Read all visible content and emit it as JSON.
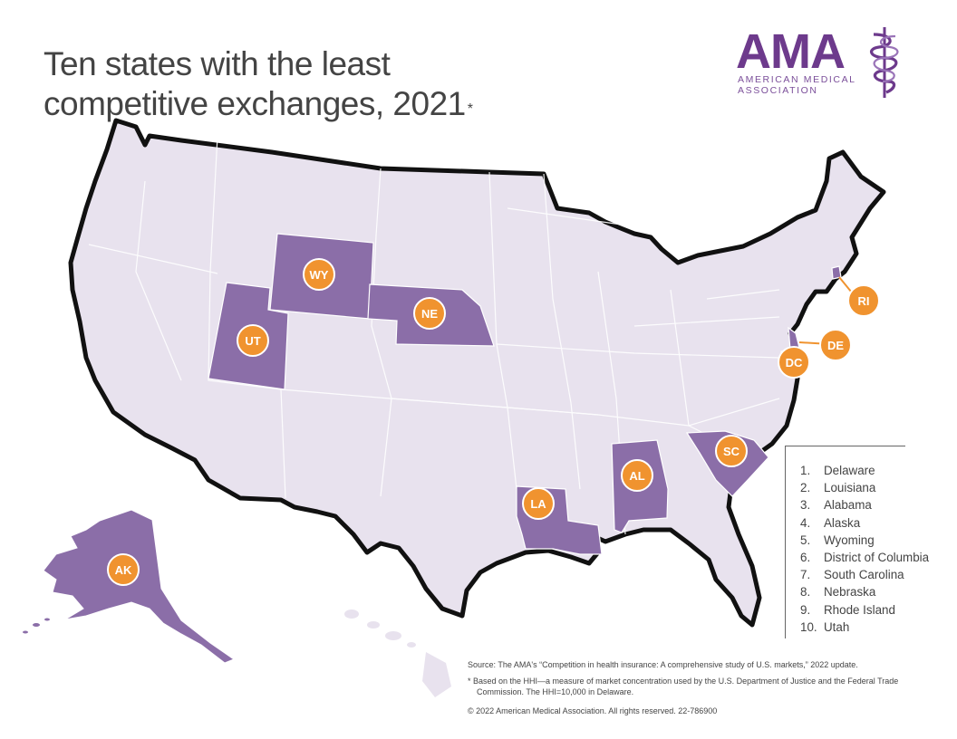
{
  "title": "Ten states with the least competitive exchanges, 2021",
  "title_marker": "*",
  "logo": {
    "brand": "AMA",
    "line1": "AMERICAN MEDICAL",
    "line2": "ASSOCIATION",
    "color": "#6d3a8c"
  },
  "colors": {
    "map_fill": "#e8e2ee",
    "highlight_fill": "#8b6ea8",
    "label_badge": "#f0932f",
    "border": "#111111"
  },
  "states": [
    {
      "abbr": "WY",
      "name": "Wyoming"
    },
    {
      "abbr": "NE",
      "name": "Nebraska"
    },
    {
      "abbr": "UT",
      "name": "Utah"
    },
    {
      "abbr": "LA",
      "name": "Louisiana"
    },
    {
      "abbr": "AL",
      "name": "Alabama"
    },
    {
      "abbr": "SC",
      "name": "South Carolina"
    },
    {
      "abbr": "AK",
      "name": "Alaska"
    },
    {
      "abbr": "RI",
      "name": "Rhode Island"
    },
    {
      "abbr": "DE",
      "name": "Delaware"
    },
    {
      "abbr": "DC",
      "name": "District of Columbia"
    }
  ],
  "legend": [
    {
      "n": "1.",
      "label": "Delaware"
    },
    {
      "n": "2.",
      "label": "Louisiana"
    },
    {
      "n": "3.",
      "label": "Alabama"
    },
    {
      "n": "4.",
      "label": "Alaska"
    },
    {
      "n": "5.",
      "label": "Wyoming"
    },
    {
      "n": "6.",
      "label": "District of Columbia"
    },
    {
      "n": "7.",
      "label": "South Carolina"
    },
    {
      "n": "8.",
      "label": "Nebraska"
    },
    {
      "n": "9.",
      "label": "Rhode Island"
    },
    {
      "n": "10.",
      "label": "Utah"
    }
  ],
  "source": "Source: The AMA's “Competition in health insurance: A comprehensive study of U.S. markets,” 2022 update.",
  "footnote": "*  Based on the HHI—a measure of market concentration used by the U.S. Department of Justice and the Federal Trade Commission. The HHI=10,000 in Delaware.",
  "copyright": "© 2022 American Medical Association. All rights reserved. 22-786900"
}
